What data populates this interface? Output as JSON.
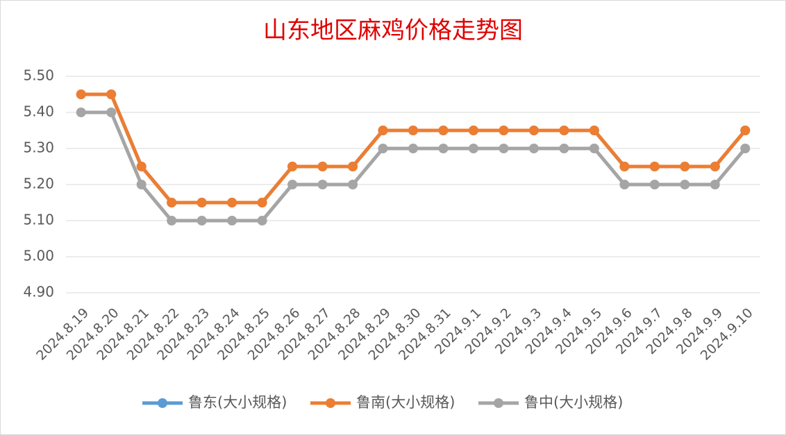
{
  "chart_data": {
    "type": "line",
    "title": "山东地区麻鸡价格走势图",
    "categories": [
      "2024.8.19",
      "2024.8.20",
      "2024.8.21",
      "2024.8.22",
      "2024.8.23",
      "2024.8.24",
      "2024.8.25",
      "2024.8.26",
      "2024.8.27",
      "2024.8.28",
      "2024.8.29",
      "2024.8.30",
      "2024.8.31",
      "2024.9.1",
      "2024.9.2",
      "2024.9.3",
      "2024.9.4",
      "2024.9.5",
      "2024.9.6",
      "2024.9.7",
      "2024.9.8",
      "2024.9.9",
      "2024.9.10"
    ],
    "series": [
      {
        "name": "鲁东(大小规格)",
        "color": "#5b9bd5",
        "values": [
          5.45,
          5.45,
          5.25,
          5.15,
          5.15,
          5.15,
          5.15,
          5.25,
          5.25,
          5.25,
          5.35,
          5.35,
          5.35,
          5.35,
          5.35,
          5.35,
          5.35,
          5.35,
          5.25,
          5.25,
          5.25,
          5.25,
          5.35
        ]
      },
      {
        "name": "鲁南(大小规格)",
        "color": "#ed7d31",
        "values": [
          5.45,
          5.45,
          5.25,
          5.15,
          5.15,
          5.15,
          5.15,
          5.25,
          5.25,
          5.25,
          5.35,
          5.35,
          5.35,
          5.35,
          5.35,
          5.35,
          5.35,
          5.35,
          5.25,
          5.25,
          5.25,
          5.25,
          5.35
        ]
      },
      {
        "name": "鲁中(大小规格)",
        "color": "#a5a5a5",
        "values": [
          5.4,
          5.4,
          5.2,
          5.1,
          5.1,
          5.1,
          5.1,
          5.2,
          5.2,
          5.2,
          5.3,
          5.3,
          5.3,
          5.3,
          5.3,
          5.3,
          5.3,
          5.3,
          5.2,
          5.2,
          5.2,
          5.2,
          5.3
        ]
      }
    ],
    "ylim": [
      4.9,
      5.5
    ],
    "yticks": [
      {
        "value": 4.9,
        "label": "4.90"
      },
      {
        "value": 5.0,
        "label": "5.00"
      },
      {
        "value": 5.1,
        "label": "5.10"
      },
      {
        "value": 5.2,
        "label": "5.20"
      },
      {
        "value": 5.3,
        "label": "5.30"
      },
      {
        "value": 5.4,
        "label": "5.40"
      },
      {
        "value": 5.5,
        "label": "5.50"
      }
    ],
    "grid": true,
    "legend": "bottom"
  }
}
